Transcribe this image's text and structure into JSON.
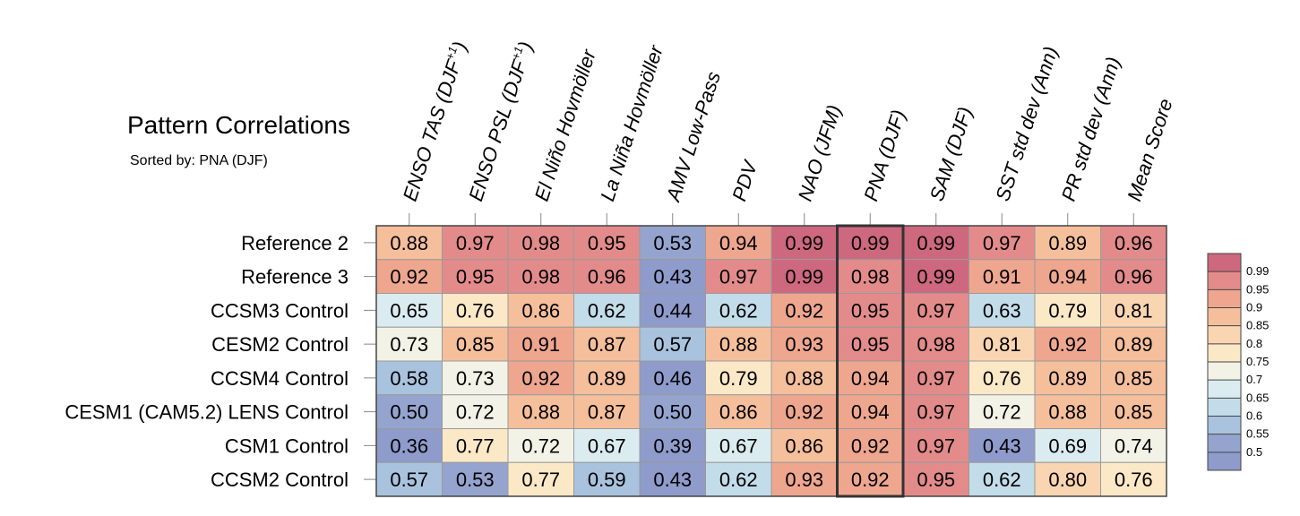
{
  "chart_data": {
    "type": "heatmap",
    "title": "Pattern Correlations",
    "subtitle": "Sorted by: PNA (DJF)",
    "columns": [
      "ENSO TAS (DJF+1)",
      "ENSO PSL (DJF+1)",
      "El Niño Hovmöller",
      "La Niña Hovmöller",
      "AMV Low-Pass",
      "PDV",
      "NAO (JFM)",
      "PNA (DJF)",
      "SAM (DJF)",
      "SST std dev (Ann)",
      "PR std dev (Ann)",
      "Mean Score"
    ],
    "rows": [
      "Reference 2",
      "Reference 3",
      "CCSM3 Control",
      "CESM2 Control",
      "CCSM4 Control",
      "CESM1 (CAM5.2) LENS Control",
      "CSM1 Control",
      "CCSM2 Control"
    ],
    "values": [
      [
        "0.88",
        "0.97",
        "0.98",
        "0.95",
        "0.53",
        "0.94",
        "0.99",
        "0.99",
        "0.99",
        "0.97",
        "0.89",
        "0.96"
      ],
      [
        "0.92",
        "0.95",
        "0.98",
        "0.96",
        "0.43",
        "0.97",
        "0.99",
        "0.98",
        "0.99",
        "0.91",
        "0.94",
        "0.96"
      ],
      [
        "0.65",
        "0.76",
        "0.86",
        "0.62",
        "0.44",
        "0.62",
        "0.92",
        "0.95",
        "0.97",
        "0.63",
        "0.79",
        "0.81"
      ],
      [
        "0.73",
        "0.85",
        "0.91",
        "0.87",
        "0.57",
        "0.88",
        "0.93",
        "0.95",
        "0.98",
        "0.81",
        "0.92",
        "0.89"
      ],
      [
        "0.58",
        "0.73",
        "0.92",
        "0.89",
        "0.46",
        "0.79",
        "0.88",
        "0.94",
        "0.97",
        "0.76",
        "0.89",
        "0.85"
      ],
      [
        "0.50",
        "0.72",
        "0.88",
        "0.87",
        "0.50",
        "0.86",
        "0.92",
        "0.94",
        "0.97",
        "0.72",
        "0.88",
        "0.85"
      ],
      [
        "0.36",
        "0.77",
        "0.72",
        "0.67",
        "0.39",
        "0.67",
        "0.86",
        "0.92",
        "0.97",
        "0.43",
        "0.69",
        "0.74"
      ],
      [
        "0.57",
        "0.53",
        "0.77",
        "0.59",
        "0.43",
        "0.62",
        "0.93",
        "0.92",
        "0.95",
        "0.62",
        "0.80",
        "0.76"
      ]
    ],
    "highlight_column": "PNA (DJF)",
    "colorbar": {
      "levels": [
        "0.99",
        "0.95",
        "0.9",
        "0.85",
        "0.8",
        "0.75",
        "0.7",
        "0.65",
        "0.6",
        "0.55",
        "0.5"
      ],
      "colors": [
        "#cd687f",
        "#e38b8b",
        "#eea68f",
        "#f5bf9c",
        "#f9d5b1",
        "#fbe8c7",
        "#f3f2e6",
        "#dbecf1",
        "#c3dcea",
        "#a9c3de",
        "#95a4cf",
        "#8e9bcb"
      ]
    }
  }
}
